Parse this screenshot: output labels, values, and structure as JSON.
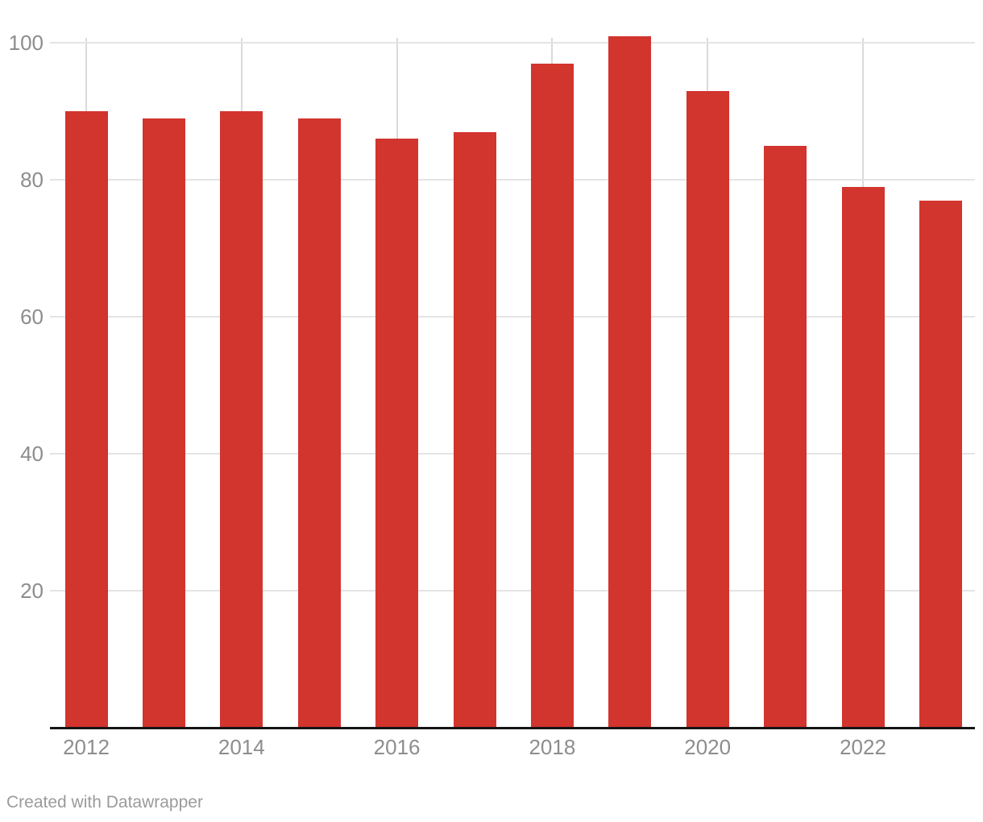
{
  "chart_data": {
    "type": "bar",
    "categories": [
      "2012",
      "2013",
      "2014",
      "2015",
      "2016",
      "2017",
      "2018",
      "2019",
      "2020",
      "2021",
      "2022",
      "2023"
    ],
    "values": [
      90,
      89,
      90,
      89,
      86,
      87,
      97,
      101,
      93,
      85,
      79,
      77
    ],
    "title": "",
    "xlabel": "",
    "ylabel": "",
    "ylim": [
      0,
      105
    ],
    "y_ticks": [
      20,
      40,
      60,
      80,
      100
    ],
    "x_tick_labels": [
      "2012",
      "2014",
      "2016",
      "2018",
      "2020",
      "2022"
    ],
    "grid": true,
    "legend_position": "none"
  },
  "colors": {
    "bar": "#d2342e",
    "axis_label": "#8d8d8d",
    "gridline": "#e4e4e4",
    "tick_line": "#dadada",
    "baseline": "#151515",
    "attribution": "#9b9b9b",
    "background": "#ffffff"
  },
  "footer": {
    "attribution": "Created with Datawrapper"
  }
}
